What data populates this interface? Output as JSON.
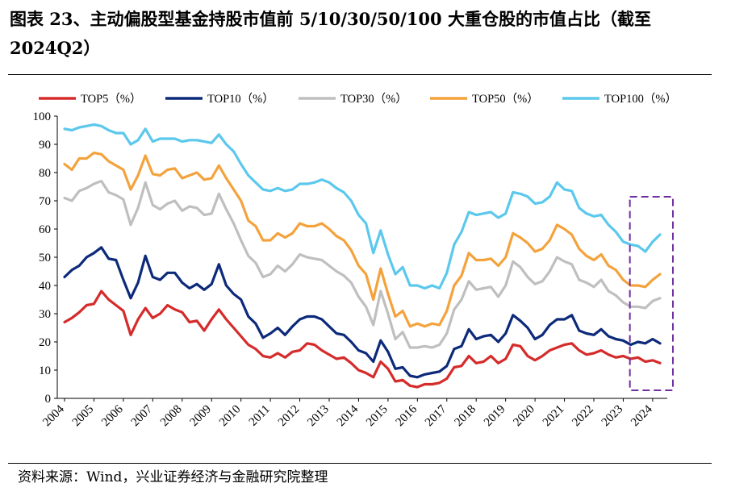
{
  "page": {
    "title": "图表 23、主动偏股型基金持股市值前 5/10/30/50/100 大重仓股的市值占比（截至 2024Q2）",
    "source": "资料来源：Wind，兴业证券经济与金融研究院整理"
  },
  "chart_data": {
    "type": "line",
    "title": "",
    "xlabel": "",
    "ylabel": "",
    "ylim": [
      0,
      100
    ],
    "yticks": [
      0,
      10,
      20,
      30,
      40,
      50,
      60,
      70,
      80,
      90,
      100
    ],
    "xlim": [
      "2004Q1",
      "2024Q2"
    ],
    "xticks": [
      "2004",
      "2005",
      "2006",
      "2007",
      "2008",
      "2009",
      "2010",
      "2011",
      "2012",
      "2013",
      "2014",
      "2015",
      "2016",
      "2017",
      "2018",
      "2019",
      "2020",
      "2021",
      "2022",
      "2023",
      "2024"
    ],
    "grid": false,
    "legend": "top",
    "highlight": {
      "from": "2023Q3",
      "to": "2024Q2",
      "style": "dashed box",
      "color": "#7030A0"
    },
    "x": [
      "2004Q1",
      "2004Q2",
      "2004Q3",
      "2004Q4",
      "2005Q1",
      "2005Q2",
      "2005Q3",
      "2005Q4",
      "2006Q1",
      "2006Q2",
      "2006Q3",
      "2006Q4",
      "2007Q1",
      "2007Q2",
      "2007Q3",
      "2007Q4",
      "2008Q1",
      "2008Q2",
      "2008Q3",
      "2008Q4",
      "2009Q1",
      "2009Q2",
      "2009Q3",
      "2009Q4",
      "2010Q1",
      "2010Q2",
      "2010Q3",
      "2010Q4",
      "2011Q1",
      "2011Q2",
      "2011Q3",
      "2011Q4",
      "2012Q1",
      "2012Q2",
      "2012Q3",
      "2012Q4",
      "2013Q1",
      "2013Q2",
      "2013Q3",
      "2013Q4",
      "2014Q1",
      "2014Q2",
      "2014Q3",
      "2014Q4",
      "2015Q1",
      "2015Q2",
      "2015Q3",
      "2015Q4",
      "2016Q1",
      "2016Q2",
      "2016Q3",
      "2016Q4",
      "2017Q1",
      "2017Q2",
      "2017Q3",
      "2017Q4",
      "2018Q1",
      "2018Q2",
      "2018Q3",
      "2018Q4",
      "2019Q1",
      "2019Q2",
      "2019Q3",
      "2019Q4",
      "2020Q1",
      "2020Q2",
      "2020Q3",
      "2020Q4",
      "2021Q1",
      "2021Q2",
      "2021Q3",
      "2021Q4",
      "2022Q1",
      "2022Q2",
      "2022Q3",
      "2022Q4",
      "2023Q1",
      "2023Q2",
      "2023Q3",
      "2023Q4",
      "2024Q1",
      "2024Q2"
    ],
    "series": [
      {
        "name": "TOP5（%）",
        "color": "#D52B2B",
        "values": [
          27,
          28.5,
          30.5,
          33,
          33.5,
          38,
          35,
          33,
          31,
          22.5,
          28,
          32,
          28.5,
          30,
          33,
          31.5,
          30.5,
          27,
          27.5,
          24,
          28,
          31.5,
          28,
          25,
          22,
          19,
          17.5,
          15,
          14.5,
          16,
          14.5,
          16.5,
          17,
          19.5,
          19,
          17,
          15.5,
          14,
          14.5,
          12.5,
          10,
          9,
          7.5,
          13,
          10.5,
          6,
          6.5,
          4.5,
          4,
          5,
          5,
          5.5,
          7,
          11,
          11.5,
          15,
          12.5,
          13,
          15,
          12.5,
          14,
          19,
          18.5,
          15,
          13.5,
          15,
          17,
          18,
          19,
          19.5,
          17,
          15.5,
          16,
          17,
          15.5,
          14.5,
          15,
          14,
          14.5,
          13,
          13.5,
          12.5
        ]
      },
      {
        "name": "TOP10（%）",
        "color": "#0D2A7A",
        "values": [
          43,
          45.5,
          47,
          50,
          51.5,
          53.5,
          49.5,
          49,
          42,
          35.5,
          41,
          50.5,
          43,
          42,
          44.5,
          44.5,
          41,
          39,
          40.5,
          38.5,
          40.5,
          47.5,
          40,
          37,
          35,
          29,
          26.5,
          21.5,
          23,
          25,
          22.5,
          25.5,
          28,
          29,
          29,
          28,
          25.5,
          23,
          22.5,
          20,
          17,
          16,
          13,
          20.5,
          16.5,
          10.5,
          11,
          8,
          7.5,
          8.5,
          9,
          9.5,
          11.5,
          17.5,
          18.5,
          24.5,
          21,
          22,
          22.5,
          20,
          23,
          29.5,
          27.5,
          25,
          21,
          22.5,
          26,
          28,
          28,
          29.5,
          24,
          23,
          22.5,
          24.5,
          22,
          21,
          20.5,
          19,
          20,
          19.5,
          21,
          19.5
        ]
      },
      {
        "name": "TOP30（%）",
        "color": "#BFBFBF",
        "values": [
          71,
          70,
          73.5,
          74.5,
          76,
          77,
          73,
          72,
          70.5,
          61.5,
          67.5,
          76.5,
          68.5,
          67,
          69,
          70,
          66.5,
          68,
          67.5,
          65,
          65.5,
          72.5,
          67,
          62,
          56,
          50.5,
          48,
          43,
          44,
          47,
          45,
          47.5,
          51,
          50,
          49.5,
          49,
          47,
          45,
          43.5,
          41,
          36,
          32.5,
          26,
          38,
          30,
          21,
          23.5,
          18,
          18,
          18.5,
          18,
          19,
          23,
          31.5,
          35,
          41.5,
          38.5,
          39,
          39.5,
          36,
          40,
          48.5,
          46.5,
          43,
          40.5,
          41.5,
          45,
          50,
          48.5,
          47.5,
          42,
          41,
          39.5,
          42,
          38,
          36.5,
          34,
          32.5,
          32.5,
          32,
          34.5,
          35.5
        ]
      },
      {
        "name": "TOP50（%）",
        "color": "#F4A23C",
        "values": [
          83,
          81,
          85,
          85,
          87,
          86.5,
          84,
          82.5,
          81,
          74,
          79,
          86,
          79.5,
          79,
          81,
          81.5,
          78,
          79,
          80,
          77.5,
          78,
          82.5,
          78,
          74,
          70,
          63,
          61,
          56,
          56,
          58.5,
          57,
          58.5,
          62,
          61,
          61,
          62,
          60,
          57.5,
          56,
          52.5,
          47,
          44,
          35,
          46,
          37,
          29,
          31,
          25.5,
          26.5,
          25.5,
          26.5,
          26,
          31,
          40,
          43.5,
          51.5,
          49,
          49,
          49.5,
          47,
          50,
          58.5,
          57,
          55,
          52,
          53,
          56,
          61.5,
          60,
          58,
          53,
          50.5,
          49,
          51,
          47,
          45.5,
          42,
          40,
          40,
          39.5,
          42,
          44
        ]
      },
      {
        "name": "TOP100（%）",
        "color": "#5BC8EC",
        "values": [
          95.5,
          95,
          96,
          96.5,
          97,
          96.5,
          95,
          94,
          94,
          90,
          91.5,
          95.5,
          91,
          92,
          92,
          92,
          91,
          91.5,
          91.5,
          91,
          90.5,
          93.5,
          90,
          87.5,
          83,
          79,
          76.5,
          74,
          73.5,
          74.5,
          73.5,
          74,
          76,
          76,
          76.5,
          77.5,
          76.5,
          74.5,
          73,
          70,
          65,
          62,
          51.5,
          59.5,
          51,
          44,
          46.5,
          40,
          40,
          39,
          40,
          39,
          44.5,
          54.5,
          59,
          66,
          65,
          65.5,
          66,
          64,
          65.5,
          73,
          72.5,
          71.5,
          69,
          69.5,
          71.5,
          76.5,
          74,
          73.5,
          67.5,
          65.5,
          64.5,
          65,
          61.5,
          59,
          55.5,
          54.5,
          54,
          52,
          55.5,
          58
        ]
      }
    ]
  }
}
